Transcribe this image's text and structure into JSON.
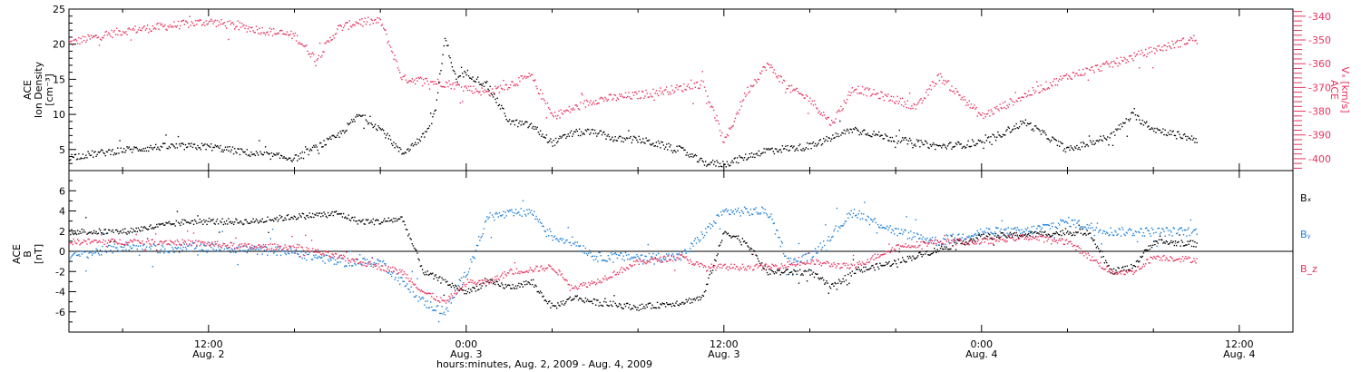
{
  "xaxis": {
    "title": "hours:minutes, Aug.  2, 2009 - Aug.  4, 2009",
    "range": [
      "2009-08-02T05:30",
      "2009-08-04T14:30"
    ],
    "ticks": [
      {
        "time": "2009-08-02T12:00",
        "label": "12:00",
        "date": "Aug. 2"
      },
      {
        "time": "2009-08-03T00:00",
        "label": "0:00",
        "date": "Aug. 3"
      },
      {
        "time": "2009-08-03T12:00",
        "label": "12:00",
        "date": "Aug. 3"
      },
      {
        "time": "2009-08-04T00:00",
        "label": "0:00",
        "date": "Aug. 4"
      },
      {
        "time": "2009-08-04T12:00",
        "label": "12:00",
        "date": "Aug. 4"
      }
    ],
    "minor_step_hours": 4
  },
  "panel1": {
    "left_label": [
      "ACE",
      "Ion Density",
      "[cm⁻³]"
    ],
    "right_label": [
      "ACE",
      "Vₓ [km/s]"
    ],
    "left_color": "#000000",
    "right_color": "#e8335f",
    "left_ylim": [
      2,
      25
    ],
    "right_ylim": [
      -405,
      -337
    ],
    "left_ticks": [
      5,
      10,
      15,
      20,
      25
    ],
    "right_ticks": [
      -400,
      -390,
      -380,
      -370,
      -360,
      -350,
      -340
    ]
  },
  "panel2": {
    "left_label": [
      "ACE",
      "B",
      "[nT]"
    ],
    "ylim": [
      -8,
      8
    ],
    "ticks": [
      -6,
      -4,
      -2,
      0,
      2,
      4,
      6
    ],
    "legend": [
      {
        "label": "Bₓ",
        "color": "#000000"
      },
      {
        "label": "Bᵧ",
        "color": "#1c7fd6"
      },
      {
        "label": "B_z",
        "color": "#e8335f"
      }
    ]
  },
  "chart_data": [
    {
      "type": "scatter",
      "panel": "top",
      "series": [
        {
          "name": "Ion Density",
          "axis": "left",
          "color": "#000000",
          "x": [
            "2009-08-02T05:30",
            "2009-08-02T08:00",
            "2009-08-02T10:00",
            "2009-08-02T12:00",
            "2009-08-02T14:00",
            "2009-08-02T16:00",
            "2009-08-02T18:00",
            "2009-08-02T19:00",
            "2009-08-02T20:00",
            "2009-08-02T21:00",
            "2009-08-02T22:00",
            "2009-08-02T22:30",
            "2009-08-02T23:00",
            "2009-08-02T23:30",
            "2009-08-03T00:00",
            "2009-08-03T01:00",
            "2009-08-03T02:00",
            "2009-08-03T03:00",
            "2009-08-03T04:00",
            "2009-08-03T05:00",
            "2009-08-03T06:00",
            "2009-08-03T07:00",
            "2009-08-03T08:00",
            "2009-08-03T10:00",
            "2009-08-03T11:00",
            "2009-08-03T12:00",
            "2009-08-03T14:00",
            "2009-08-03T16:00",
            "2009-08-03T18:00",
            "2009-08-03T20:00",
            "2009-08-03T22:00",
            "2009-08-04T00:00",
            "2009-08-04T02:00",
            "2009-08-04T04:00",
            "2009-08-04T06:00",
            "2009-08-04T07:00",
            "2009-08-04T08:00",
            "2009-08-04T10:00"
          ],
          "y": [
            4.0,
            5.0,
            5.5,
            5.5,
            4.5,
            3.8,
            7.0,
            10.0,
            8.0,
            4.5,
            7.0,
            10.0,
            21.0,
            15.0,
            16.0,
            14.0,
            9.0,
            8.5,
            6.0,
            7.5,
            7.5,
            6.5,
            6.5,
            5.0,
            3.2,
            3.0,
            5.0,
            5.5,
            8.0,
            6.5,
            5.5,
            6.0,
            9.0,
            5.0,
            7.0,
            10.0,
            8.0,
            6.5
          ]
        },
        {
          "name": "Vx",
          "axis": "right",
          "color": "#e8335f",
          "x": [
            "2009-08-02T05:30",
            "2009-08-02T08:00",
            "2009-08-02T10:00",
            "2009-08-02T12:00",
            "2009-08-02T14:00",
            "2009-08-02T16:00",
            "2009-08-02T17:00",
            "2009-08-02T18:00",
            "2009-08-02T19:00",
            "2009-08-02T20:00",
            "2009-08-02T21:00",
            "2009-08-02T23:00",
            "2009-08-03T01:00",
            "2009-08-03T03:00",
            "2009-08-03T04:00",
            "2009-08-03T06:00",
            "2009-08-03T08:00",
            "2009-08-03T10:00",
            "2009-08-03T11:00",
            "2009-08-03T12:00",
            "2009-08-03T13:00",
            "2009-08-03T14:00",
            "2009-08-03T15:00",
            "2009-08-03T16:00",
            "2009-08-03T17:00",
            "2009-08-03T18:00",
            "2009-08-03T20:00",
            "2009-08-03T21:00",
            "2009-08-03T22:00",
            "2009-08-04T00:00",
            "2009-08-04T02:00",
            "2009-08-04T04:00",
            "2009-08-04T06:00",
            "2009-08-04T08:00",
            "2009-08-04T10:00"
          ],
          "y": [
            -351,
            -346,
            -344,
            -342,
            -345,
            -348,
            -358,
            -345,
            -342,
            -342,
            -366,
            -368,
            -372,
            -365,
            -382,
            -375,
            -373,
            -370,
            -368,
            -393,
            -372,
            -360,
            -370,
            -375,
            -385,
            -370,
            -375,
            -378,
            -365,
            -382,
            -373,
            -365,
            -360,
            -354,
            -349
          ]
        }
      ]
    },
    {
      "type": "scatter",
      "panel": "bottom",
      "series": [
        {
          "name": "Bx",
          "color": "#000000",
          "x": [
            "2009-08-02T05:30",
            "2009-08-02T08:00",
            "2009-08-02T11:00",
            "2009-08-02T14:00",
            "2009-08-02T16:00",
            "2009-08-02T18:00",
            "2009-08-02T19:00",
            "2009-08-02T20:00",
            "2009-08-02T21:00",
            "2009-08-02T22:00",
            "2009-08-02T23:00",
            "2009-08-03T00:00",
            "2009-08-03T01:00",
            "2009-08-03T02:00",
            "2009-08-03T03:00",
            "2009-08-03T04:00",
            "2009-08-03T05:00",
            "2009-08-03T06:00",
            "2009-08-03T08:00",
            "2009-08-03T10:00",
            "2009-08-03T11:00",
            "2009-08-03T12:00",
            "2009-08-03T13:00",
            "2009-08-03T14:00",
            "2009-08-03T16:00",
            "2009-08-03T17:00",
            "2009-08-03T18:00",
            "2009-08-03T20:00",
            "2009-08-04T00:00",
            "2009-08-04T03:00",
            "2009-08-04T05:00",
            "2009-08-04T06:00",
            "2009-08-04T07:00",
            "2009-08-04T08:00",
            "2009-08-04T10:00"
          ],
          "y": [
            2.0,
            2.0,
            3.0,
            3.0,
            3.5,
            3.8,
            3.0,
            3.0,
            3.3,
            -2.0,
            -3.0,
            -4.0,
            -3.0,
            -3.5,
            -3.0,
            -5.5,
            -4.5,
            -5.0,
            -5.5,
            -5.0,
            -4.5,
            2.0,
            1.0,
            -2.0,
            -2.0,
            -3.5,
            -2.0,
            -1.0,
            1.5,
            1.8,
            2.0,
            -2.0,
            -1.5,
            1.0,
            0.8
          ]
        },
        {
          "name": "By",
          "color": "#1c7fd6",
          "x": [
            "2009-08-02T05:30",
            "2009-08-02T08:00",
            "2009-08-02T10:00",
            "2009-08-02T12:00",
            "2009-08-02T14:00",
            "2009-08-02T16:00",
            "2009-08-02T18:00",
            "2009-08-02T20:00",
            "2009-08-02T21:00",
            "2009-08-02T22:00",
            "2009-08-02T23:00",
            "2009-08-03T00:00",
            "2009-08-03T01:00",
            "2009-08-03T03:00",
            "2009-08-03T04:00",
            "2009-08-03T05:00",
            "2009-08-03T06:00",
            "2009-08-03T08:00",
            "2009-08-03T10:00",
            "2009-08-03T12:00",
            "2009-08-03T14:00",
            "2009-08-03T15:00",
            "2009-08-03T16:00",
            "2009-08-03T18:00",
            "2009-08-03T20:00",
            "2009-08-03T22:00",
            "2009-08-04T00:00",
            "2009-08-04T02:00",
            "2009-08-04T04:00",
            "2009-08-04T06:00",
            "2009-08-04T08:00",
            "2009-08-04T10:00"
          ],
          "y": [
            -0.5,
            0.5,
            0.3,
            0.5,
            0.2,
            0.0,
            -1.0,
            -1.0,
            -3.0,
            -5.0,
            -6.0,
            -2.0,
            3.5,
            4.0,
            1.5,
            1.0,
            -0.5,
            -0.5,
            -0.5,
            4.0,
            4.0,
            -1.0,
            -0.5,
            4.0,
            2.0,
            1.0,
            2.0,
            2.0,
            3.0,
            2.0,
            2.0,
            2.0
          ]
        },
        {
          "name": "Bz",
          "color": "#e8335f",
          "x": [
            "2009-08-02T05:30",
            "2009-08-02T08:00",
            "2009-08-02T10:00",
            "2009-08-02T12:00",
            "2009-08-02T14:00",
            "2009-08-02T16:00",
            "2009-08-02T18:00",
            "2009-08-02T20:00",
            "2009-08-02T21:00",
            "2009-08-02T22:00",
            "2009-08-02T23:00",
            "2009-08-03T00:00",
            "2009-08-03T01:00",
            "2009-08-03T02:00",
            "2009-08-03T04:00",
            "2009-08-03T05:00",
            "2009-08-03T06:00",
            "2009-08-03T08:00",
            "2009-08-03T10:00",
            "2009-08-03T11:00",
            "2009-08-03T12:00",
            "2009-08-03T14:00",
            "2009-08-03T16:00",
            "2009-08-03T18:00",
            "2009-08-03T20:00",
            "2009-08-03T22:00",
            "2009-08-04T00:00",
            "2009-08-04T02:00",
            "2009-08-04T04:00",
            "2009-08-04T06:00",
            "2009-08-04T07:00",
            "2009-08-04T08:00",
            "2009-08-04T10:00"
          ],
          "y": [
            1.0,
            1.0,
            1.0,
            0.8,
            0.5,
            0.5,
            -0.5,
            -1.5,
            -2.0,
            -4.0,
            -5.0,
            -3.0,
            -3.0,
            -2.0,
            -1.5,
            -3.5,
            -3.0,
            -1.0,
            -0.5,
            -1.5,
            -1.5,
            -1.5,
            -1.0,
            -1.5,
            0.5,
            1.0,
            1.0,
            1.5,
            1.0,
            -2.0,
            -2.0,
            -0.5,
            -0.8
          ]
        }
      ]
    }
  ]
}
